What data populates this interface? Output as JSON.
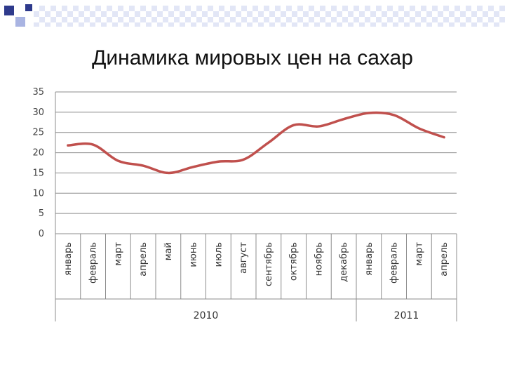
{
  "slide": {
    "title": "Динамика мировых цен на сахар"
  },
  "colors": {
    "accent_dark": "#2e3a8c",
    "accent_light": "#a9b4e2",
    "line": "#c0504d",
    "grid": "#8c8c8c"
  },
  "chart_data": {
    "type": "line",
    "title": "",
    "xlabel": "",
    "ylabel": "",
    "ylim": [
      0,
      35
    ],
    "yticks": [
      0,
      5,
      10,
      15,
      20,
      25,
      30,
      35
    ],
    "grid": true,
    "categories": [
      "январь",
      "февраль",
      "март",
      "апрель",
      "май",
      "июнь",
      "июль",
      "август",
      "сентябрь",
      "октябрь",
      "ноябрь",
      "декабрь",
      "январь",
      "февраль",
      "март",
      "апрель"
    ],
    "groups": [
      {
        "label": "2010",
        "count": 12
      },
      {
        "label": "2011",
        "count": 4
      }
    ],
    "series": [
      {
        "values": [
          21.8,
          22.0,
          18.0,
          16.8,
          15.0,
          16.5,
          17.8,
          18.3,
          22.5,
          26.8,
          26.5,
          28.3,
          29.8,
          29.3,
          26.0,
          23.8
        ]
      }
    ]
  }
}
